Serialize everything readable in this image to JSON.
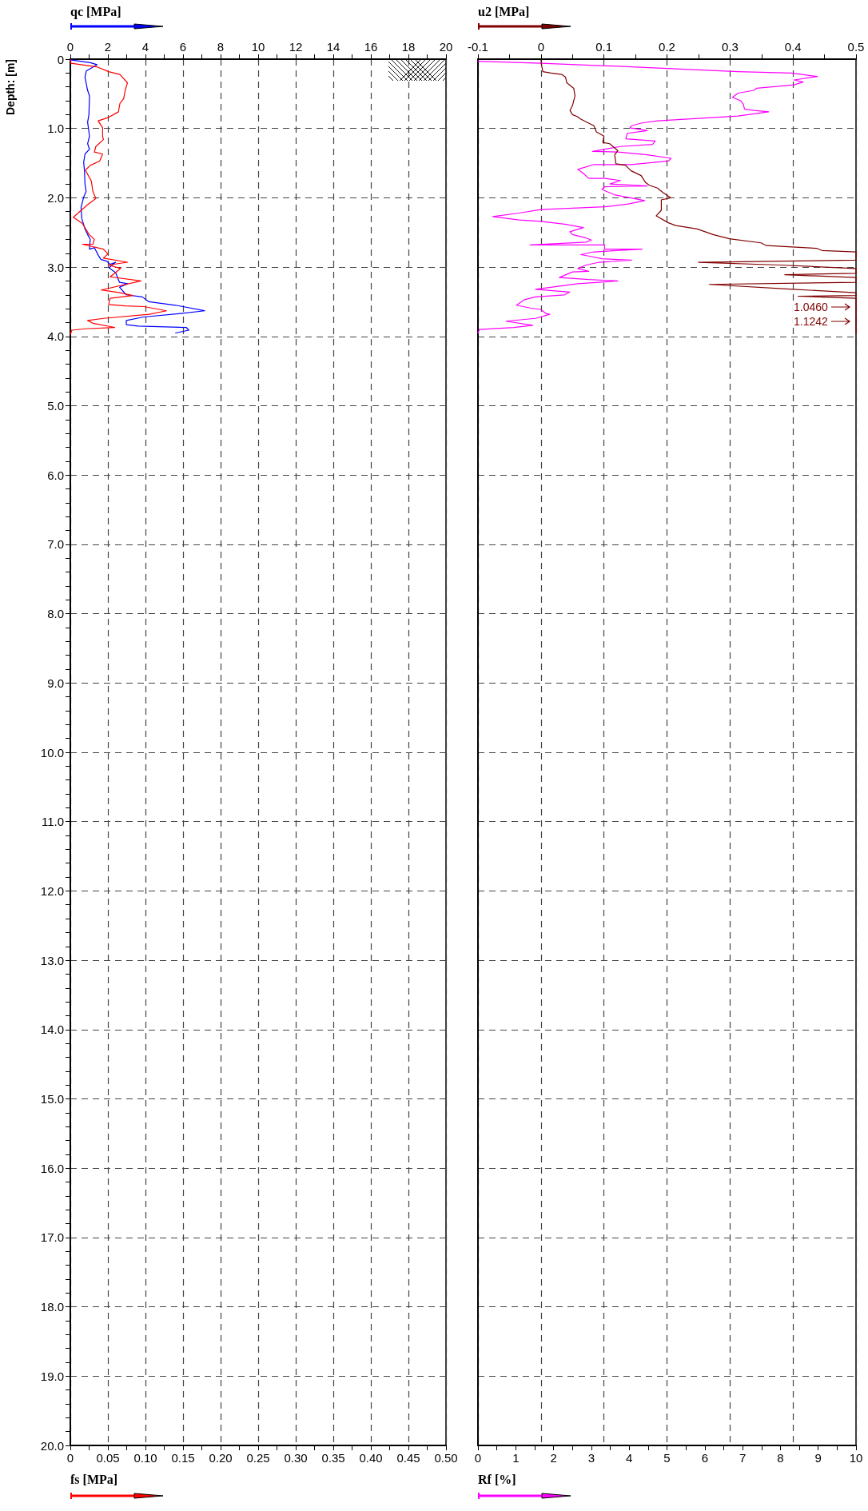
{
  "chart_data": [
    {
      "type": "line",
      "ylabel": "Depth: [m]",
      "xlabel": "fs [MPa]",
      "x2label": "qc [MPa]",
      "grid": true,
      "marker": "none",
      "line_style": "solid",
      "xlim": [
        0,
        0.5
      ],
      "xticks": [
        0,
        {
          "value": 0.025,
          "label": null
        },
        0.05,
        {
          "value": 0.075,
          "label": null
        },
        {
          "value": 0.1,
          "label": "0.10"
        },
        {
          "value": 0.125,
          "label": null
        },
        0.15,
        {
          "value": 0.175,
          "label": null
        },
        {
          "value": 0.2,
          "label": "0.20"
        },
        {
          "value": 0.225,
          "label": null
        },
        0.25,
        {
          "value": 0.275,
          "label": null
        },
        {
          "value": 0.3,
          "label": "0.30"
        },
        {
          "value": 0.325,
          "label": null
        },
        0.35,
        {
          "value": 0.375,
          "label": null
        },
        {
          "value": 0.4,
          "label": "0.40"
        },
        {
          "value": 0.425,
          "label": null
        },
        0.45,
        {
          "value": 0.475,
          "label": null
        },
        {
          "value": 0.5,
          "label": "0.50"
        }
      ],
      "x2lim": [
        0,
        20
      ],
      "x2ticks": [
        0,
        {
          "value": 1,
          "label": null
        },
        2,
        {
          "value": 3,
          "label": null
        },
        4,
        {
          "value": 5,
          "label": null
        },
        6,
        {
          "value": 7,
          "label": null
        },
        8,
        {
          "value": 9,
          "label": null
        },
        10,
        {
          "value": 11,
          "label": null
        },
        12,
        {
          "value": 13,
          "label": null
        },
        14,
        {
          "value": 15,
          "label": null
        },
        16,
        {
          "value": 17,
          "label": null
        },
        18,
        {
          "value": 19,
          "label": null
        },
        20
      ],
      "ylim": [
        20,
        0
      ],
      "yticks": [
        0,
        {
          "value": 0.2,
          "label": null
        },
        {
          "value": 0.4,
          "label": null
        },
        {
          "value": 0.6,
          "label": null
        },
        {
          "value": 0.8,
          "label": null
        },
        {
          "value": 1,
          "label": "1.0"
        },
        {
          "value": 1.2,
          "label": null
        },
        {
          "value": 1.4,
          "label": null
        },
        {
          "value": 1.6,
          "label": null
        },
        {
          "value": 1.8,
          "label": null
        },
        {
          "value": 2,
          "label": "2.0"
        },
        {
          "value": 2.2,
          "label": null
        },
        {
          "value": 2.4,
          "label": null
        },
        {
          "value": 2.6,
          "label": null
        },
        {
          "value": 2.8,
          "label": null
        },
        {
          "value": 3,
          "label": "3.0"
        },
        {
          "value": 3.2,
          "label": null
        },
        {
          "value": 3.4,
          "label": null
        },
        {
          "value": 3.6,
          "label": null
        },
        {
          "value": 3.8,
          "label": null
        },
        {
          "value": 4,
          "label": "4.0"
        },
        {
          "value": 4.2,
          "label": null
        },
        {
          "value": 4.4,
          "label": null
        },
        {
          "value": 4.6,
          "label": null
        },
        {
          "value": 4.8,
          "label": null
        },
        {
          "value": 5,
          "label": "5.0"
        },
        {
          "value": 5.2,
          "label": null
        },
        {
          "value": 5.4,
          "label": null
        },
        {
          "value": 5.6,
          "label": null
        },
        {
          "value": 5.8,
          "label": null
        },
        {
          "value": 6,
          "label": "6.0"
        },
        {
          "value": 6.2,
          "label": null
        },
        {
          "value": 6.4,
          "label": null
        },
        {
          "value": 6.6,
          "label": null
        },
        {
          "value": 6.8,
          "label": null
        },
        {
          "value": 7,
          "label": "7.0"
        },
        {
          "value": 7.2,
          "label": null
        },
        {
          "value": 7.4,
          "label": null
        },
        {
          "value": 7.6,
          "label": null
        },
        {
          "value": 7.8,
          "label": null
        },
        {
          "value": 8,
          "label": "8.0"
        },
        {
          "value": 8.2,
          "label": null
        },
        {
          "value": 8.4,
          "label": null
        },
        {
          "value": 8.6,
          "label": null
        },
        {
          "value": 8.8,
          "label": null
        },
        {
          "value": 9,
          "label": "9.0"
        },
        {
          "value": 9.2,
          "label": null
        },
        {
          "value": 9.4,
          "label": null
        },
        {
          "value": 9.6,
          "label": null
        },
        {
          "value": 9.8,
          "label": null
        },
        {
          "value": 10,
          "label": "10.0"
        },
        {
          "value": 10.2,
          "label": null
        },
        {
          "value": 10.4,
          "label": null
        },
        {
          "value": 10.6,
          "label": null
        },
        {
          "value": 10.8,
          "label": null
        },
        {
          "value": 11,
          "label": "11.0"
        },
        {
          "value": 11.2,
          "label": null
        },
        {
          "value": 11.4,
          "label": null
        },
        {
          "value": 11.6,
          "label": null
        },
        {
          "value": 11.8,
          "label": null
        },
        {
          "value": 12,
          "label": "12.0"
        },
        {
          "value": 12.2,
          "label": null
        },
        {
          "value": 12.4,
          "label": null
        },
        {
          "value": 12.6,
          "label": null
        },
        {
          "value": 12.8,
          "label": null
        },
        {
          "value": 13,
          "label": "13.0"
        },
        {
          "value": 13.2,
          "label": null
        },
        {
          "value": 13.4,
          "label": null
        },
        {
          "value": 13.6,
          "label": null
        },
        {
          "value": 13.8,
          "label": null
        },
        {
          "value": 14,
          "label": "14.0"
        },
        {
          "value": 14.2,
          "label": null
        },
        {
          "value": 14.4,
          "label": null
        },
        {
          "value": 14.6,
          "label": null
        },
        {
          "value": 14.8,
          "label": null
        },
        {
          "value": 15,
          "label": "15.0"
        },
        {
          "value": 15.2,
          "label": null
        },
        {
          "value": 15.4,
          "label": null
        },
        {
          "value": 15.6,
          "label": null
        },
        {
          "value": 15.8,
          "label": null
        },
        {
          "value": 16,
          "label": "16.0"
        },
        {
          "value": 16.2,
          "label": null
        },
        {
          "value": 16.4,
          "label": null
        },
        {
          "value": 16.6,
          "label": null
        },
        {
          "value": 16.8,
          "label": null
        },
        {
          "value": 17,
          "label": "17.0"
        },
        {
          "value": 17.2,
          "label": null
        },
        {
          "value": 17.4,
          "label": null
        },
        {
          "value": 17.6,
          "label": null
        },
        {
          "value": 17.8,
          "label": null
        },
        {
          "value": 18,
          "label": "18.0"
        },
        {
          "value": 18.2,
          "label": null
        },
        {
          "value": 18.4,
          "label": null
        },
        {
          "value": 18.6,
          "label": null
        },
        {
          "value": 18.8,
          "label": null
        },
        {
          "value": 19,
          "label": "19.0"
        },
        {
          "value": 19.2,
          "label": null
        },
        {
          "value": 19.4,
          "label": null
        },
        {
          "value": 19.6,
          "label": null
        },
        {
          "value": 19.8,
          "label": null
        },
        {
          "value": 20,
          "label": "20.0"
        }
      ],
      "series": [
        {
          "color": "#0000ff",
          "axis": "x2",
          "x": [
            0,
            1.06,
            1.42,
            0.85,
            0.78,
            0.92,
            1.02,
            0.99,
            0.92,
            1.02,
            0.92,
            1.02,
            0.78,
            0.71,
            0.75,
            0.78,
            0.84,
            0.71,
            0.57,
            0.61,
            0.78,
            0.92,
            1.06,
            1.02,
            1.28,
            1.49,
            1.63,
            1.91,
            2.13,
            2.41,
            2.06,
            2.41,
            2.62,
            3.05,
            2.62,
            2.98,
            3.83,
            4.18,
            5.6,
            7.16,
            5.88,
            3.9,
            2.98,
            2.98,
            3.62,
            6.17,
            6.31,
            5.6
          ],
          "values": [
            0.01,
            0.05,
            0.08,
            0.17,
            0.26,
            0.45,
            0.53,
            0.8,
            0.91,
            1.11,
            1.22,
            1.3,
            1.37,
            1.49,
            1.6,
            1.8,
            1.91,
            1.99,
            2.14,
            2.3,
            2.45,
            2.53,
            2.6,
            2.74,
            2.72,
            2.83,
            2.89,
            2.91,
            2.96,
            2.93,
            3.01,
            3.08,
            3.22,
            3.24,
            3.29,
            3.4,
            3.43,
            3.5,
            3.55,
            3.63,
            3.67,
            3.72,
            3.77,
            3.83,
            3.85,
            3.87,
            3.91,
            3.95
          ]
        },
        {
          "color": "#ff0000",
          "x": [
            0,
            0.001,
            0.035,
            0.051,
            0.066,
            0.076,
            0.073,
            0.071,
            0.066,
            0.064,
            0.051,
            0.037,
            0.043,
            0.043,
            0.044,
            0.034,
            0.032,
            0.043,
            0.039,
            0.027,
            0.02,
            0.028,
            0.03,
            0.034,
            0.023,
            0.004,
            0.016,
            0.025,
            0.032,
            0.03,
            0.016,
            0.044,
            0.05,
            0.044,
            0.076,
            0.051,
            0.067,
            0.053,
            0.094,
            0.041,
            0.066,
            0.083,
            0.053,
            0.051,
            0.073,
            0.098,
            0.128,
            0.105,
            0.044,
            0.023,
            0.03,
            0.059,
            0.02,
            0.002,
            0
          ],
          "values": [
            0.01,
            0.06,
            0.11,
            0.18,
            0.22,
            0.34,
            0.45,
            0.57,
            0.64,
            0.76,
            0.84,
            0.89,
            0.99,
            1.11,
            1.16,
            1.26,
            1.34,
            1.37,
            1.47,
            1.53,
            1.6,
            1.76,
            1.91,
            2.01,
            2.1,
            2.28,
            2.37,
            2.53,
            2.6,
            2.67,
            2.67,
            2.74,
            2.81,
            2.87,
            2.93,
            2.97,
            3.02,
            3.14,
            3.2,
            3.33,
            3.37,
            3.41,
            3.45,
            3.54,
            3.56,
            3.57,
            3.63,
            3.68,
            3.74,
            3.77,
            3.81,
            3.87,
            3.89,
            3.91,
            3.97
          ]
        }
      ]
    },
    {
      "type": "line",
      "xlabel": "Rf [%]",
      "x2label": "u2 [MPa]",
      "grid": true,
      "marker": "none",
      "line_style": "solid",
      "tick_labels": "x",
      "xlim": [
        0,
        10
      ],
      "xticks": [
        0,
        {
          "value": 0.5,
          "label": null
        },
        1,
        {
          "value": 1.5,
          "label": null
        },
        2,
        {
          "value": 2.5,
          "label": null
        },
        3,
        {
          "value": 3.5,
          "label": null
        },
        4,
        {
          "value": 4.5,
          "label": null
        },
        5,
        {
          "value": 5.5,
          "label": null
        },
        6,
        {
          "value": 6.5,
          "label": null
        },
        7,
        {
          "value": 7.5,
          "label": null
        },
        8,
        {
          "value": 8.5,
          "label": null
        },
        9,
        {
          "value": 9.5,
          "label": null
        },
        10
      ],
      "x2lim": [
        -0.1,
        0.5
      ],
      "x2ticks": [
        -0.1,
        {
          "value": -0.05,
          "label": null
        },
        0,
        {
          "value": 0.05,
          "label": null
        },
        0.1,
        {
          "value": 0.15,
          "label": null
        },
        0.2,
        {
          "value": 0.25,
          "label": null
        },
        0.3,
        {
          "value": 0.35,
          "label": null
        },
        0.4,
        {
          "value": 0.45,
          "label": null
        },
        0.5
      ],
      "ylim": [
        20,
        0
      ],
      "yticks": [
        0,
        1,
        2,
        3,
        4,
        5,
        6,
        7,
        8,
        9,
        10,
        11,
        12,
        13,
        14,
        15,
        16,
        17,
        18,
        19,
        20
      ],
      "annotations": [
        "1.0460",
        "1.1242"
      ],
      "series": [
        {
          "color": "#ff00ff",
          "x": [
            0,
            1.67,
            4.06,
            6.88,
            8.29,
            8.98,
            8.36,
            8.6,
            8.36,
            7.37,
            7.3,
            6.88,
            6.73,
            6.95,
            7.02,
            7.05,
            7.3,
            7.69,
            6.88,
            4.76,
            4.34,
            4.06,
            4.02,
            4.48,
            3.95,
            3.91,
            4.69,
            4.62,
            3.77,
            3.03,
            3.7,
            4.48,
            5.11,
            5.04,
            4.06,
            3.07,
            2.64,
            2.79,
            2.93,
            3.35,
            3.77,
            3.49,
            4.48,
            3.35,
            3.28,
            3.63,
            4.41,
            3.98,
            3.35,
            1.66,
            1.09,
            0.39,
            1.09,
            1.66,
            2.29,
            2.79,
            2.43,
            2.5,
            2.86,
            3,
            2.86,
            1.38,
            3.35,
            3.35,
            4.34,
            3.07,
            2.72,
            2.93,
            3.28,
            4.06,
            3.21,
            2.86,
            2.64,
            2.93,
            2.5,
            2.15,
            2.93,
            3.7,
            2.64,
            1.52,
            2.43,
            2.29,
            1.52,
            1.23,
            1.02,
            1.38,
            1.66,
            1.8,
            1.9,
            1.52,
            0.74,
            1.45,
            0.95,
            0.04,
            0
          ],
          "values": [
            0.03,
            0.06,
            0.11,
            0.18,
            0.2,
            0.25,
            0.3,
            0.33,
            0.37,
            0.42,
            0.45,
            0.49,
            0.55,
            0.6,
            0.65,
            0.72,
            0.74,
            0.76,
            0.82,
            0.89,
            0.92,
            0.96,
            0.99,
            1.03,
            1.07,
            1.15,
            1.18,
            1.23,
            1.26,
            1.33,
            1.34,
            1.38,
            1.43,
            1.47,
            1.52,
            1.52,
            1.59,
            1.65,
            1.72,
            1.72,
            1.75,
            1.8,
            1.83,
            1.84,
            1.88,
            1.96,
            2.04,
            2.09,
            2.13,
            2.17,
            2.22,
            2.27,
            2.32,
            2.34,
            2.38,
            2.43,
            2.49,
            2.53,
            2.58,
            2.61,
            2.64,
            2.68,
            2.68,
            2.74,
            2.74,
            2.78,
            2.82,
            2.84,
            2.88,
            2.9,
            2.93,
            2.97,
            3.02,
            3.06,
            3.07,
            3.15,
            3.18,
            3.2,
            3.24,
            3.32,
            3.36,
            3.4,
            3.43,
            3.47,
            3.55,
            3.59,
            3.61,
            3.67,
            3.68,
            3.74,
            3.78,
            3.84,
            3.87,
            3.9,
            3.95
          ]
        },
        {
          "color": "#800000",
          "axis": "x2",
          "x": [
            0,
            0.001,
            0.003,
            0.016,
            0.033,
            0.039,
            0.041,
            0.052,
            0.054,
            0.05,
            0.046,
            0.05,
            0.058,
            0.062,
            0.075,
            0.084,
            0.088,
            0.1,
            0.098,
            0.109,
            0.122,
            0.117,
            0.119,
            0.134,
            0.143,
            0.159,
            0.166,
            0.172,
            0.185,
            0.193,
            0.206,
            0.191,
            0.191,
            0.183,
            0.202,
            0.214,
            0.248,
            0.273,
            0.299,
            0.349,
            0.358,
            0.438,
            0.446,
            0.5,
            0.5,
            0.25,
            0.379,
            0.5,
            0.5,
            0.387,
            0.5,
            0.5,
            0.267,
            0.4,
            0.5,
            0.5,
            0.408,
            0.5,
            0.5
          ],
          "values": [
            0.01,
            0.09,
            0.18,
            0.2,
            0.22,
            0.26,
            0.34,
            0.42,
            0.53,
            0.67,
            0.74,
            0.8,
            0.83,
            0.86,
            0.92,
            0.96,
            1.05,
            1.11,
            1.2,
            1.22,
            1.32,
            1.38,
            1.51,
            1.53,
            1.61,
            1.68,
            1.78,
            1.82,
            1.86,
            1.92,
            2,
            2.03,
            2.18,
            2.26,
            2.36,
            2.4,
            2.45,
            2.53,
            2.59,
            2.65,
            2.69,
            2.73,
            2.76,
            2.78,
            2.9,
            2.93,
            2.97,
            3.02,
            3.09,
            3.11,
            3.15,
            3.22,
            3.25,
            3.32,
            3.37,
            3.41,
            3.42,
            3.45,
            3.95
          ]
        }
      ]
    }
  ]
}
